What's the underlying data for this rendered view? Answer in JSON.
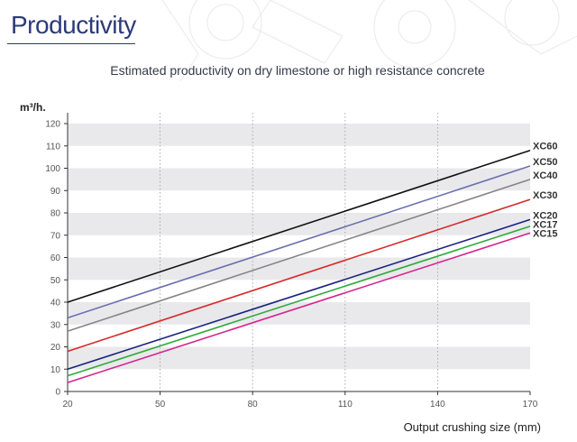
{
  "header": {
    "title": "Productivity"
  },
  "chart_data": {
    "type": "line",
    "title": "Estimated productivity on dry limestone or high resistance concrete",
    "xlabel": "Output crushing size (mm)",
    "ylabel": "m³/h.",
    "xlim": [
      20,
      170
    ],
    "ylim": [
      0,
      120
    ],
    "x_ticks": [
      20,
      50,
      80,
      110,
      140,
      170
    ],
    "y_ticks": [
      0,
      10,
      20,
      30,
      40,
      50,
      60,
      70,
      80,
      90,
      100,
      110,
      120
    ],
    "grid": "bands on y, dotted verticals on x",
    "series": [
      {
        "name": "XC60",
        "x": [
          20,
          170
        ],
        "values": [
          40,
          108
        ],
        "color": "#111111"
      },
      {
        "name": "XC50",
        "x": [
          20,
          170
        ],
        "values": [
          33,
          101
        ],
        "color": "#6a6fae"
      },
      {
        "name": "XC40",
        "x": [
          20,
          170
        ],
        "values": [
          27,
          95
        ],
        "color": "#858585"
      },
      {
        "name": "XC30",
        "x": [
          20,
          170
        ],
        "values": [
          18,
          86
        ],
        "color": "#d62b2b"
      },
      {
        "name": "XC20",
        "x": [
          20,
          170
        ],
        "values": [
          10,
          77
        ],
        "color": "#1a237e"
      },
      {
        "name": "XC17",
        "x": [
          20,
          170
        ],
        "values": [
          7,
          74
        ],
        "color": "#2eaa3a"
      },
      {
        "name": "XC15",
        "x": [
          20,
          170
        ],
        "values": [
          4,
          71
        ],
        "color": "#d6248e"
      }
    ]
  }
}
